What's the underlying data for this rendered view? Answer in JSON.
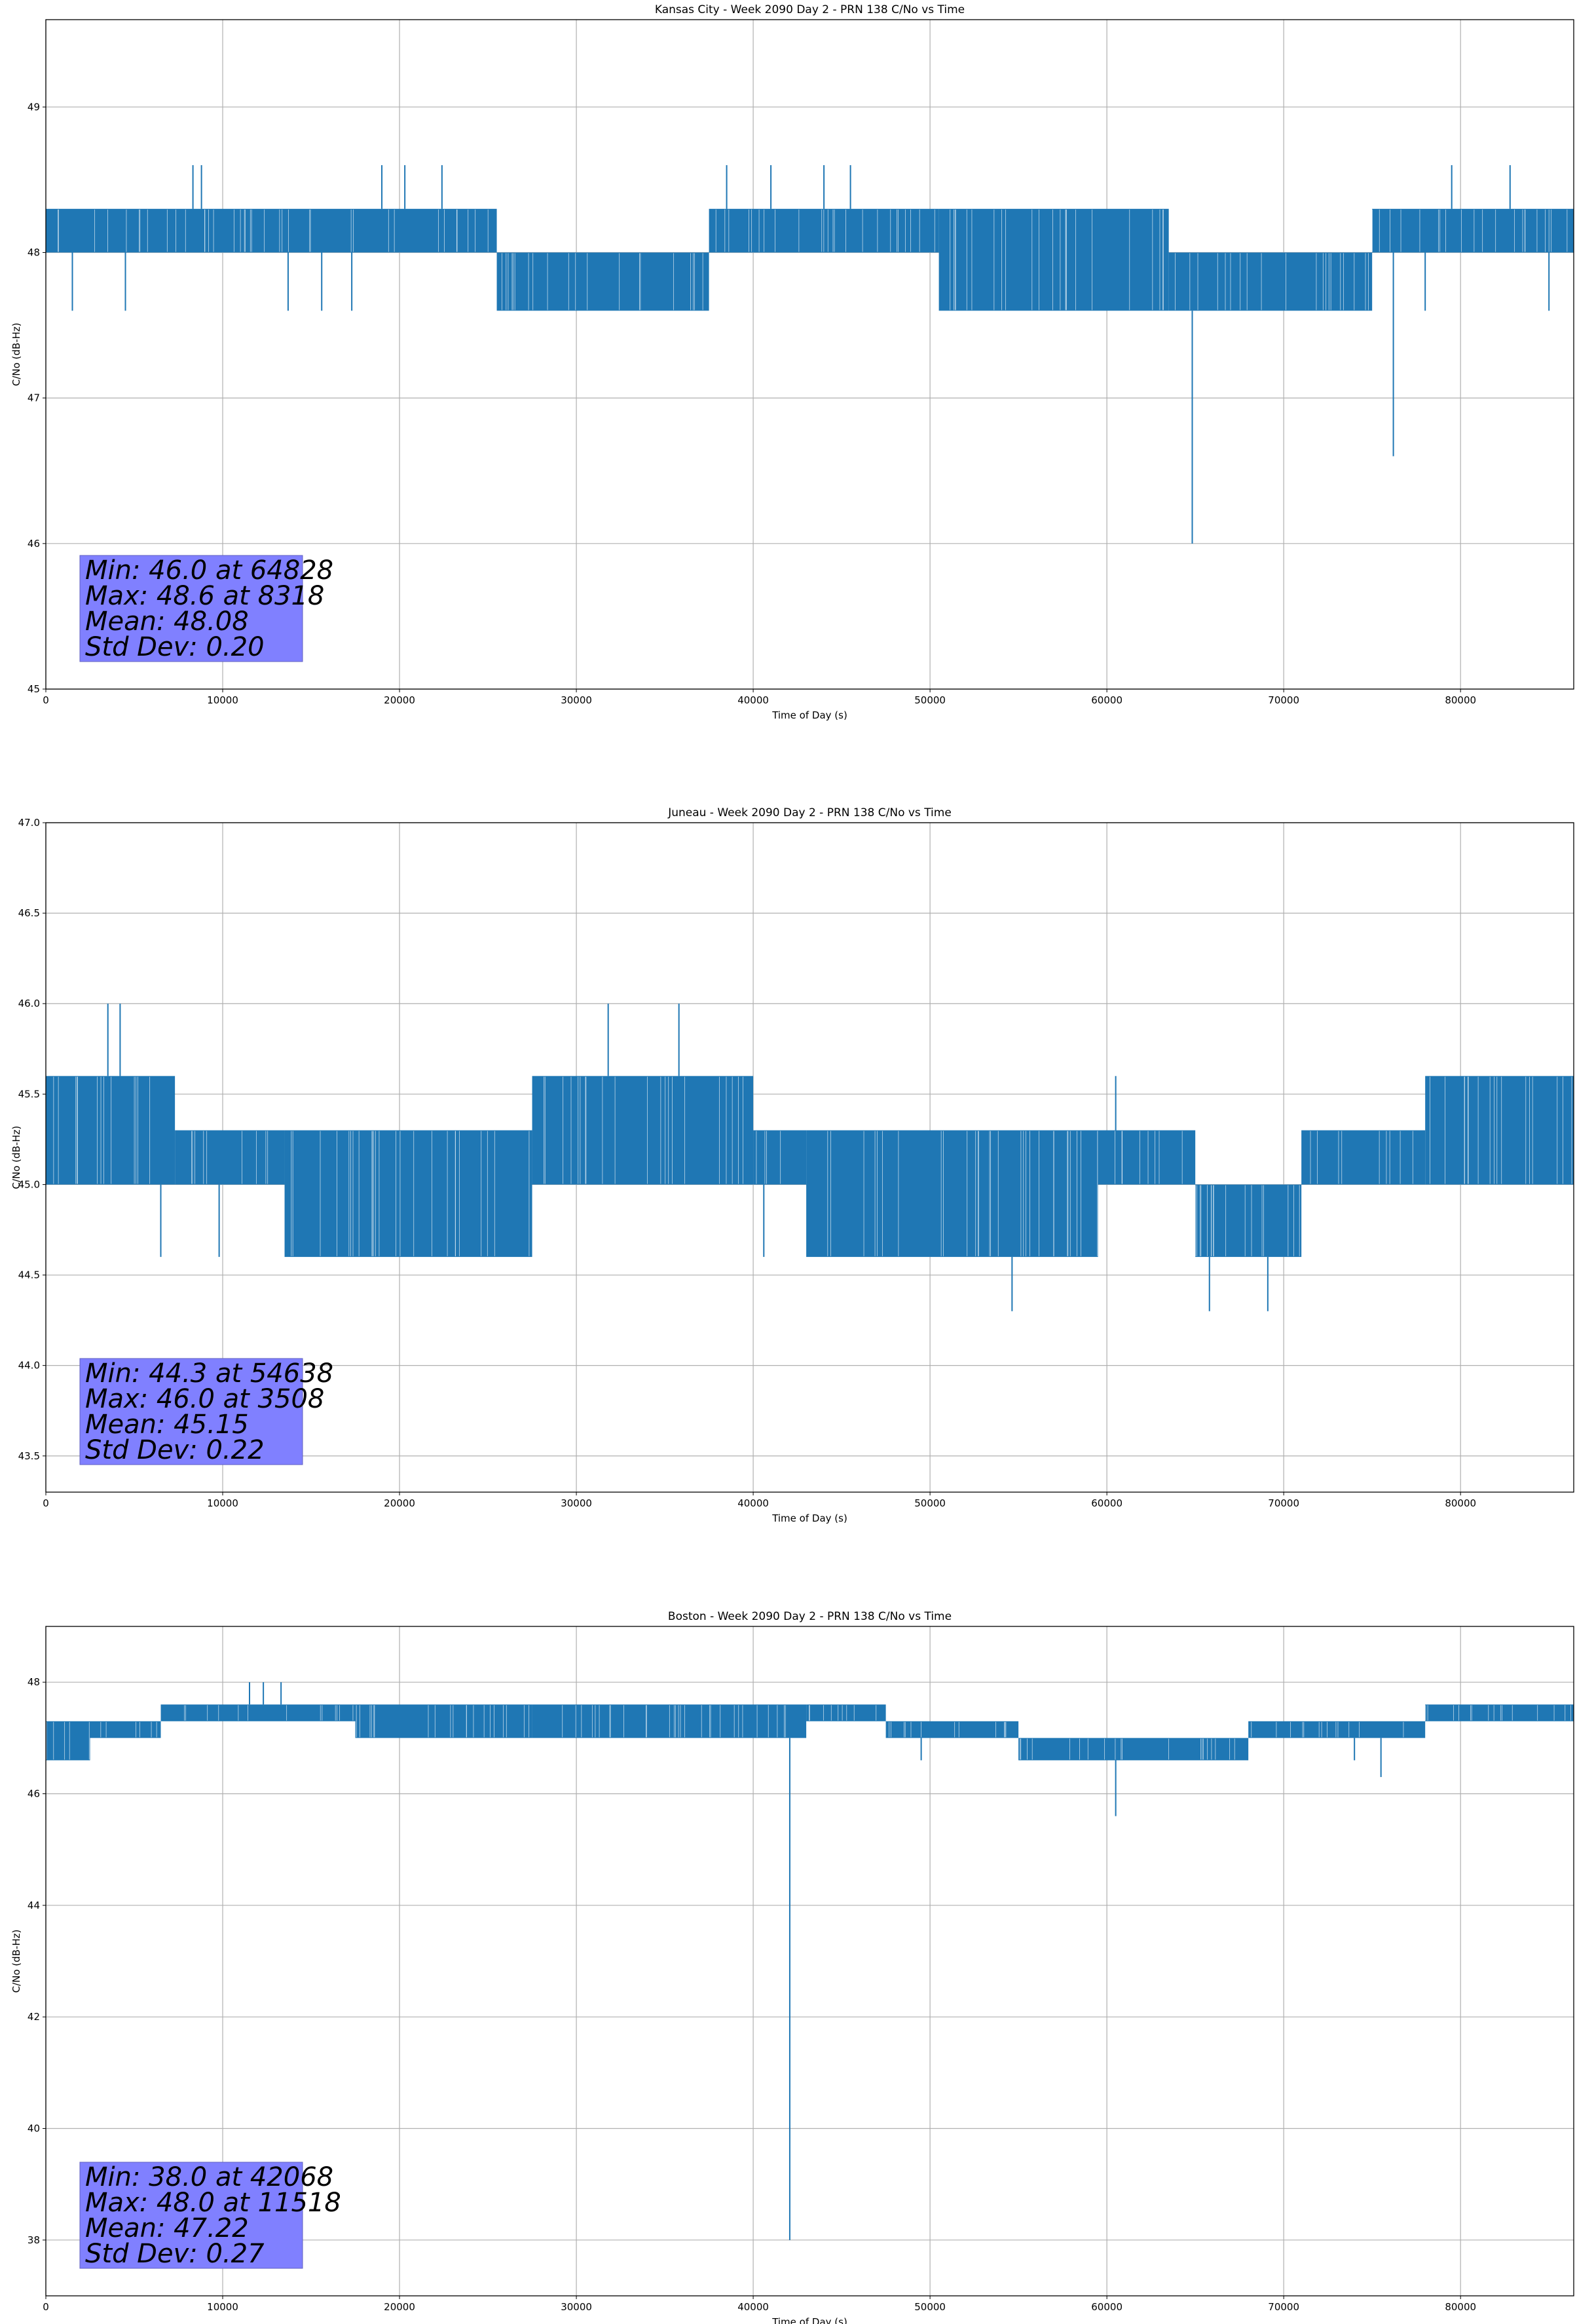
{
  "figure": {
    "background": "#ffffff",
    "line_color": "#1f77b4",
    "grid_color": "#b0b0b0",
    "stats_box_color": "#8080ff"
  },
  "chart_data": [
    {
      "type": "line",
      "title": "Kansas City - Week 2090 Day 2 - PRN 138 C/No vs Time",
      "xlabel": "Time of Day (s)",
      "ylabel": "C/No (dB-Hz)",
      "xlim": [
        0,
        86400
      ],
      "ylim": [
        45,
        49.6
      ],
      "xticks": [
        0,
        10000,
        20000,
        30000,
        40000,
        50000,
        60000,
        70000,
        80000
      ],
      "yticks": [
        45,
        46,
        47,
        48,
        49
      ],
      "ytick_labels": [
        "45",
        "46",
        "47",
        "48",
        "49"
      ],
      "grid": true,
      "segments": [
        {
          "x0": 0,
          "x1": 25500,
          "low": 48.0,
          "high": 48.3
        },
        {
          "x0": 25500,
          "x1": 37500,
          "low": 47.6,
          "high": 48.0
        },
        {
          "x0": 37500,
          "x1": 50500,
          "low": 48.0,
          "high": 48.3
        },
        {
          "x0": 50500,
          "x1": 63500,
          "low": 47.6,
          "high": 48.3
        },
        {
          "x0": 63500,
          "x1": 75000,
          "low": 47.6,
          "high": 48.0
        },
        {
          "x0": 75000,
          "x1": 86400,
          "low": 48.0,
          "high": 48.3
        }
      ],
      "spikes": [
        {
          "x": 8318,
          "y": 48.6
        },
        {
          "x": 8800,
          "y": 48.6
        },
        {
          "x": 19000,
          "y": 48.6
        },
        {
          "x": 20300,
          "y": 48.6
        },
        {
          "x": 22400,
          "y": 48.6
        },
        {
          "x": 38500,
          "y": 48.6
        },
        {
          "x": 41000,
          "y": 48.6
        },
        {
          "x": 44000,
          "y": 48.6
        },
        {
          "x": 45500,
          "y": 48.6
        },
        {
          "x": 79500,
          "y": 48.6
        },
        {
          "x": 82800,
          "y": 48.6
        },
        {
          "x": 1500,
          "y": 47.6
        },
        {
          "x": 4500,
          "y": 47.6
        },
        {
          "x": 13700,
          "y": 47.6
        },
        {
          "x": 15600,
          "y": 47.6
        },
        {
          "x": 17300,
          "y": 47.6
        },
        {
          "x": 51000,
          "y": 47.6
        },
        {
          "x": 78000,
          "y": 47.6
        },
        {
          "x": 85000,
          "y": 47.6
        },
        {
          "x": 64828,
          "y": 46.0
        },
        {
          "x": 76200,
          "y": 46.6
        }
      ],
      "stats": [
        "Min: 46.0 at 64828",
        "Max: 48.6 at 8318",
        "Mean: 48.08",
        "Std Dev: 0.20"
      ]
    },
    {
      "type": "line",
      "title": "Juneau - Week 2090 Day 2 - PRN 138 C/No vs Time",
      "xlabel": "Time of Day (s)",
      "ylabel": "C/No (dB-Hz)",
      "xlim": [
        0,
        86400
      ],
      "ylim": [
        43.3,
        47.0
      ],
      "xticks": [
        0,
        10000,
        20000,
        30000,
        40000,
        50000,
        60000,
        70000,
        80000
      ],
      "yticks": [
        43.5,
        44.0,
        44.5,
        45.0,
        45.5,
        46.0,
        46.5,
        47.0
      ],
      "ytick_labels": [
        "43.5",
        "44.0",
        "44.5",
        "45.0",
        "45.5",
        "46.0",
        "46.5",
        "47.0"
      ],
      "grid": true,
      "segments": [
        {
          "x0": 0,
          "x1": 7300,
          "low": 45.0,
          "high": 45.6
        },
        {
          "x0": 7300,
          "x1": 13500,
          "low": 45.0,
          "high": 45.3
        },
        {
          "x0": 13500,
          "x1": 27500,
          "low": 44.6,
          "high": 45.3
        },
        {
          "x0": 27500,
          "x1": 40000,
          "low": 45.0,
          "high": 45.6
        },
        {
          "x0": 40000,
          "x1": 43000,
          "low": 45.0,
          "high": 45.3
        },
        {
          "x0": 43000,
          "x1": 59500,
          "low": 44.6,
          "high": 45.3
        },
        {
          "x0": 59500,
          "x1": 65000,
          "low": 45.0,
          "high": 45.3
        },
        {
          "x0": 65000,
          "x1": 71000,
          "low": 44.6,
          "high": 45.0
        },
        {
          "x0": 71000,
          "x1": 78000,
          "low": 45.0,
          "high": 45.3
        },
        {
          "x0": 78000,
          "x1": 86400,
          "low": 45.0,
          "high": 45.6
        }
      ],
      "spikes": [
        {
          "x": 3508,
          "y": 46.0
        },
        {
          "x": 4200,
          "y": 46.0
        },
        {
          "x": 31800,
          "y": 46.0
        },
        {
          "x": 35800,
          "y": 46.0
        },
        {
          "x": 6500,
          "y": 44.6
        },
        {
          "x": 9800,
          "y": 44.6
        },
        {
          "x": 54638,
          "y": 44.3
        },
        {
          "x": 65800,
          "y": 44.3
        },
        {
          "x": 69100,
          "y": 44.3
        },
        {
          "x": 60500,
          "y": 45.6
        },
        {
          "x": 48000,
          "y": 44.6
        },
        {
          "x": 40600,
          "y": 44.6
        }
      ],
      "stats": [
        "Min: 44.3 at 54638",
        "Max: 46.0 at 3508",
        "Mean: 45.15",
        "Std Dev: 0.22"
      ]
    },
    {
      "type": "line",
      "title": "Boston - Week 2090 Day 2 - PRN 138 C/No vs Time",
      "xlabel": "Time of Day (s)",
      "ylabel": "C/No (dB-Hz)",
      "xlim": [
        0,
        86400
      ],
      "ylim": [
        37.0,
        49.0
      ],
      "xticks": [
        0,
        10000,
        20000,
        30000,
        40000,
        50000,
        60000,
        70000,
        80000
      ],
      "yticks": [
        38,
        40,
        42,
        44,
        46,
        48
      ],
      "ytick_labels": [
        "38",
        "40",
        "42",
        "44",
        "46",
        "48"
      ],
      "grid": true,
      "segments": [
        {
          "x0": 0,
          "x1": 2500,
          "low": 46.6,
          "high": 47.3
        },
        {
          "x0": 2500,
          "x1": 6500,
          "low": 47.0,
          "high": 47.3
        },
        {
          "x0": 6500,
          "x1": 17500,
          "low": 47.3,
          "high": 47.6
        },
        {
          "x0": 17500,
          "x1": 27500,
          "low": 47.0,
          "high": 47.6
        },
        {
          "x0": 27500,
          "x1": 43000,
          "low": 47.0,
          "high": 47.6
        },
        {
          "x0": 43000,
          "x1": 47500,
          "low": 47.3,
          "high": 47.6
        },
        {
          "x0": 47500,
          "x1": 55000,
          "low": 47.0,
          "high": 47.3
        },
        {
          "x0": 55000,
          "x1": 68000,
          "low": 46.6,
          "high": 47.0
        },
        {
          "x0": 68000,
          "x1": 78000,
          "low": 47.0,
          "high": 47.3
        },
        {
          "x0": 78000,
          "x1": 86400,
          "low": 47.3,
          "high": 47.6
        }
      ],
      "spikes": [
        {
          "x": 11518,
          "y": 48.0
        },
        {
          "x": 12300,
          "y": 48.0
        },
        {
          "x": 13300,
          "y": 48.0
        },
        {
          "x": 42068,
          "y": 38.0
        },
        {
          "x": 60500,
          "y": 45.6
        },
        {
          "x": 75500,
          "y": 46.3
        },
        {
          "x": 49500,
          "y": 46.6
        },
        {
          "x": 74000,
          "y": 46.6
        }
      ],
      "stats": [
        "Min: 38.0 at 42068",
        "Max: 48.0 at 11518",
        "Mean: 47.22",
        "Std Dev: 0.27"
      ]
    }
  ]
}
